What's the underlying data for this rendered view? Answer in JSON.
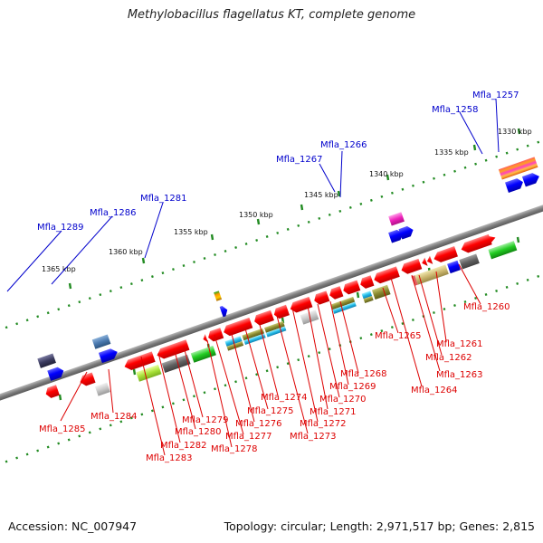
{
  "title": "Methylobacillus flagellatus KT, complete genome",
  "accession": "Accession: NC_007947",
  "summary": "Topology: circular; Length: 2,971,517 bp; Genes: 2,815",
  "colors": {
    "forward_label": "#0000cc",
    "reverse_label": "#dd0000",
    "backbone": "#808080",
    "tick": "#228b22"
  },
  "scale_ticks": [
    "1330 kbp",
    "1335 kbp",
    "1340 kbp",
    "1345 kbp",
    "1350 kbp",
    "1355 kbp",
    "1360 kbp",
    "1365 kbp"
  ],
  "forward_genes": [
    "Mfla_1257",
    "Mfla_1258",
    "Mfla_1266",
    "Mfla_1267",
    "Mfla_1281",
    "Mfla_1286",
    "Mfla_1289"
  ],
  "reverse_genes": [
    "Mfla_1260",
    "Mfla_1261",
    "Mfla_1262",
    "Mfla_1263",
    "Mfla_1264",
    "Mfla_1265",
    "Mfla_1268",
    "Mfla_1269",
    "Mfla_1270",
    "Mfla_1271",
    "Mfla_1272",
    "Mfla_1273",
    "Mfla_1274",
    "Mfla_1275",
    "Mfla_1276",
    "Mfla_1277",
    "Mfla_1278",
    "Mfla_1279",
    "Mfla_1280",
    "Mfla_1282",
    "Mfla_1283",
    "Mfla_1284",
    "Mfla_1285"
  ]
}
